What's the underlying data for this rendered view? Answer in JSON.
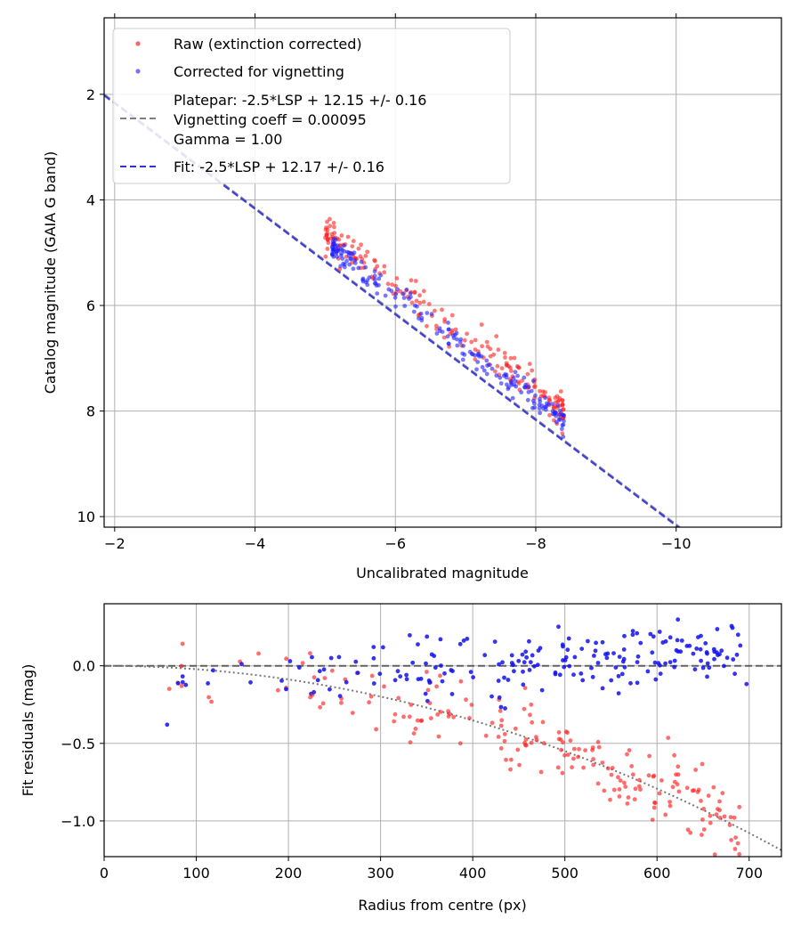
{
  "chart_data": [
    {
      "type": "scatter",
      "xlabel": "Uncalibrated magnitude",
      "ylabel": "Catalog magnitude (GAIA G band)",
      "xlim": [
        -1.85,
        -11.5
      ],
      "ylim": [
        10.2,
        0.55
      ],
      "y_inverted": true,
      "x_inverted": true,
      "xticks": [
        -2,
        -4,
        -6,
        -8,
        -10
      ],
      "xtick_labels": [
        "−2",
        "−4",
        "−6",
        "−8",
        "−10"
      ],
      "yticks": [
        2,
        4,
        6,
        8,
        10
      ],
      "ytick_labels": [
        "2",
        "4",
        "6",
        "8",
        "10"
      ],
      "grid": true,
      "legend_position": "top-left",
      "legend": [
        {
          "label": "Raw (extinction corrected)",
          "kind": "marker",
          "color": "#ff2020"
        },
        {
          "label": "Corrected for vignetting",
          "kind": "marker",
          "color": "#3a3aff"
        },
        {
          "label_lines": [
            "Platepar: -2.5*LSP + 12.15 +/- 0.16",
            "Vignetting coeff = 0.00095",
            "Gamma = 1.00"
          ],
          "kind": "dashed",
          "color": "#7f7f7f"
        },
        {
          "label": "Fit: -2.5*LSP + 12.17 +/- 0.16",
          "kind": "dashed",
          "color": "#3333dd"
        }
      ],
      "series": [
        {
          "name": "Raw (extinction corrected)",
          "color": "#ff2020",
          "opacity": 0.6,
          "x_range": [
            -5.0,
            -8.4
          ],
          "y_at_x": {
            "slope": -0.98,
            "intercept": -0.27
          },
          "scatter": 0.17,
          "count": 200
        },
        {
          "name": "Corrected for vignetting",
          "color": "#2020ff",
          "opacity": 0.6,
          "x_range": [
            -5.1,
            -8.4
          ],
          "y_at_x": {
            "slope": -1.0,
            "intercept": -0.2
          },
          "scatter": 0.12,
          "count": 200
        },
        {
          "name": "Platepar line",
          "kind": "line",
          "color": "#7f7f7f",
          "slope": -1.0,
          "intercept": 0.15
        },
        {
          "name": "Fit line",
          "kind": "line",
          "color": "#3333dd",
          "slope": -1.0,
          "intercept": 0.17
        }
      ]
    },
    {
      "type": "scatter",
      "xlabel": "Radius from centre (px)",
      "ylabel": "Fit residuals (mag)",
      "xlim": [
        0,
        735
      ],
      "ylim": [
        -1.23,
        0.4
      ],
      "xticks": [
        0,
        100,
        200,
        300,
        400,
        500,
        600,
        700
      ],
      "xtick_labels": [
        "0",
        "100",
        "200",
        "300",
        "400",
        "500",
        "600",
        "700"
      ],
      "yticks": [
        0.0,
        -0.5,
        -1.0
      ],
      "ytick_labels": [
        "0.0",
        "−0.5",
        "−1.0"
      ],
      "grid": true,
      "series": [
        {
          "name": "Raw residuals",
          "color": "#ff2020",
          "opacity": 0.65,
          "x_range": [
            20,
            690
          ],
          "trend": {
            "type": "quadratic",
            "a": -2.2e-06
          },
          "scatter": 0.12,
          "count": 200
        },
        {
          "name": "Corrected residuals",
          "color": "#1010ee",
          "opacity": 0.85,
          "x_range": [
            20,
            690
          ],
          "trend": {
            "type": "linear",
            "slope": 0.00022,
            "intercept": -0.08
          },
          "scatter": 0.11,
          "count": 200
        },
        {
          "name": "Zero line",
          "kind": "hline",
          "y": 0.0,
          "color": "#555555"
        },
        {
          "name": "Vignetting curve",
          "kind": "curve",
          "color": "#777777"
        }
      ]
    }
  ]
}
